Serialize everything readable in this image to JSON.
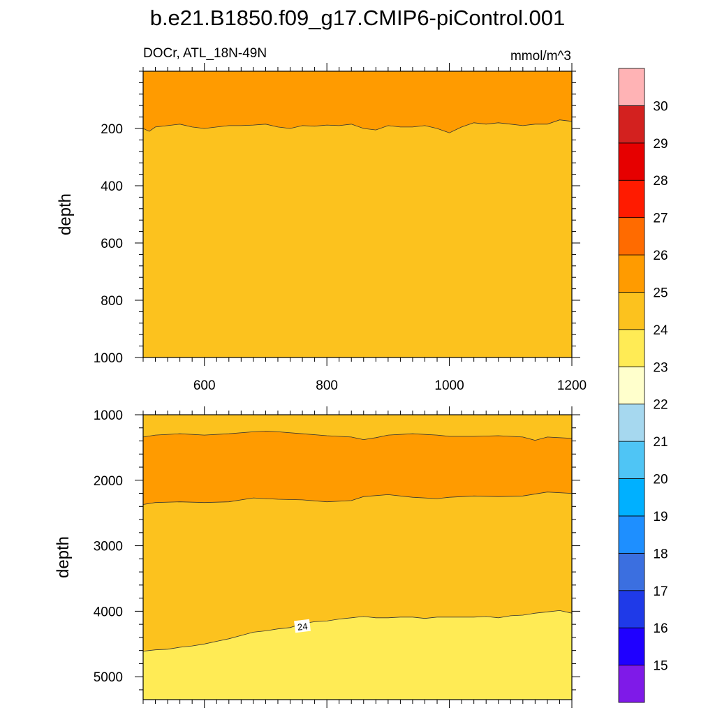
{
  "figure": {
    "title": "b.e21.B1850.f09_g17.CMIP6-piControl.001",
    "left_subtitle": "DOCr, ATL_18N-49N",
    "right_subtitle": "mmol/m^3"
  },
  "colors": {
    "c14_15": "#7f1ae8",
    "c15_16": "#1f00ff",
    "c16_17": "#1f3ae8",
    "c17_18": "#3b6fe0",
    "c18_19": "#1e8fff",
    "c19_20": "#00b0ff",
    "c20_21": "#4fc5f5",
    "c21_22": "#a6d8ef",
    "c22_23": "#ffffcc",
    "c23_24": "#ffeb55",
    "c24_25": "#fcc21e",
    "c25_26": "#ff9b00",
    "c26_27": "#ff6b00",
    "c27_28": "#ff1b00",
    "c28_29": "#e60000",
    "c29_30": "#d3211f",
    "c30_31": "#ffb3b5"
  },
  "chart_data": [
    {
      "type": "filled-contour",
      "panel": "upper",
      "xlabel": "",
      "ylabel": "depth",
      "xlim": [
        500,
        1200
      ],
      "ylim": [
        1000,
        0
      ],
      "x_ticks": [
        600,
        800,
        1000,
        1200
      ],
      "y_ticks": [
        200,
        400,
        600,
        800,
        1000
      ],
      "x_tick_labels": [
        "600",
        "800",
        "1000",
        "1200"
      ],
      "y_tick_labels": [
        "200",
        "400",
        "600",
        "800",
        "1000"
      ],
      "regions": [
        {
          "range": "24-25",
          "from": "boundary_25",
          "to": "bottom"
        },
        {
          "range": "25-26",
          "from": "top",
          "to": "boundary_25"
        }
      ],
      "boundary_25": {
        "level": 25,
        "x": [
          500,
          510,
          520,
          540,
          560,
          580,
          600,
          620,
          640,
          660,
          680,
          700,
          720,
          740,
          760,
          780,
          800,
          820,
          840,
          860,
          880,
          900,
          920,
          940,
          960,
          980,
          1000,
          1020,
          1040,
          1060,
          1080,
          1100,
          1120,
          1140,
          1160,
          1180,
          1200
        ],
        "depth": [
          200,
          210,
          195,
          190,
          185,
          195,
          200,
          195,
          190,
          190,
          188,
          185,
          195,
          200,
          190,
          192,
          188,
          190,
          185,
          200,
          205,
          190,
          195,
          195,
          190,
          200,
          215,
          195,
          180,
          185,
          180,
          185,
          190,
          185,
          185,
          170,
          175
        ]
      }
    },
    {
      "type": "filled-contour",
      "panel": "lower",
      "xlabel": "",
      "ylabel": "depth",
      "xlim": [
        500,
        1200
      ],
      "ylim": [
        5350,
        1000
      ],
      "x_ticks": [
        600,
        800,
        1000,
        1200
      ],
      "y_ticks": [
        1000,
        2000,
        3000,
        4000,
        5000
      ],
      "y_tick_labels": [
        "1000",
        "2000",
        "3000",
        "4000",
        "5000"
      ],
      "regions": [
        {
          "range": "24-25",
          "from": "top",
          "to": "boundary_25_upper"
        },
        {
          "range": "25-26",
          "from": "boundary_25_upper",
          "to": "boundary_25_lower"
        },
        {
          "range": "24-25",
          "from": "boundary_25_lower",
          "to": "boundary_24"
        },
        {
          "range": "23-24",
          "from": "boundary_24",
          "to": "bottom"
        }
      ],
      "boundary_25_upper": {
        "level": 25,
        "x": [
          500,
          520,
          560,
          600,
          640,
          680,
          700,
          720,
          760,
          800,
          840,
          860,
          880,
          900,
          940,
          980,
          1000,
          1040,
          1080,
          1120,
          1140,
          1160,
          1200
        ],
        "depth": [
          1340,
          1310,
          1290,
          1310,
          1290,
          1260,
          1250,
          1260,
          1290,
          1320,
          1340,
          1380,
          1350,
          1310,
          1290,
          1310,
          1330,
          1330,
          1320,
          1340,
          1390,
          1340,
          1360
        ]
      },
      "boundary_25_lower": {
        "level": 25,
        "x": [
          500,
          520,
          560,
          600,
          640,
          680,
          700,
          720,
          760,
          800,
          840,
          860,
          900,
          940,
          980,
          1000,
          1040,
          1080,
          1120,
          1160,
          1200
        ],
        "depth": [
          2370,
          2340,
          2330,
          2340,
          2330,
          2270,
          2280,
          2290,
          2300,
          2330,
          2310,
          2250,
          2220,
          2260,
          2280,
          2260,
          2240,
          2250,
          2240,
          2180,
          2200
        ]
      },
      "boundary_24": {
        "level": 24,
        "x": [
          500,
          520,
          540,
          560,
          580,
          600,
          620,
          640,
          660,
          680,
          700,
          720,
          740,
          760,
          780,
          800,
          820,
          840,
          860,
          880,
          900,
          920,
          940,
          960,
          980,
          1000,
          1020,
          1040,
          1060,
          1080,
          1100,
          1120,
          1140,
          1160,
          1180,
          1200
        ],
        "depth": [
          4610,
          4590,
          4580,
          4550,
          4530,
          4500,
          4460,
          4420,
          4370,
          4320,
          4300,
          4270,
          4250,
          4190,
          4160,
          4150,
          4120,
          4100,
          4080,
          4100,
          4100,
          4090,
          4090,
          4110,
          4090,
          4090,
          4090,
          4090,
          4080,
          4100,
          4070,
          4060,
          4030,
          4010,
          3990,
          4030
        ]
      },
      "contour_labels": [
        {
          "text": "24",
          "x": 760,
          "depth": 4230
        }
      ]
    }
  ],
  "colorbar": {
    "levels": [
      "15",
      "16",
      "17",
      "18",
      "19",
      "20",
      "21",
      "22",
      "23",
      "24",
      "25",
      "26",
      "27",
      "28",
      "29",
      "30"
    ],
    "color_keys": [
      "c14_15",
      "c15_16",
      "c16_17",
      "c17_18",
      "c18_19",
      "c19_20",
      "c20_21",
      "c21_22",
      "c22_23",
      "c23_24",
      "c24_25",
      "c25_26",
      "c26_27",
      "c27_28",
      "c28_29",
      "c29_30",
      "c30_31"
    ]
  }
}
